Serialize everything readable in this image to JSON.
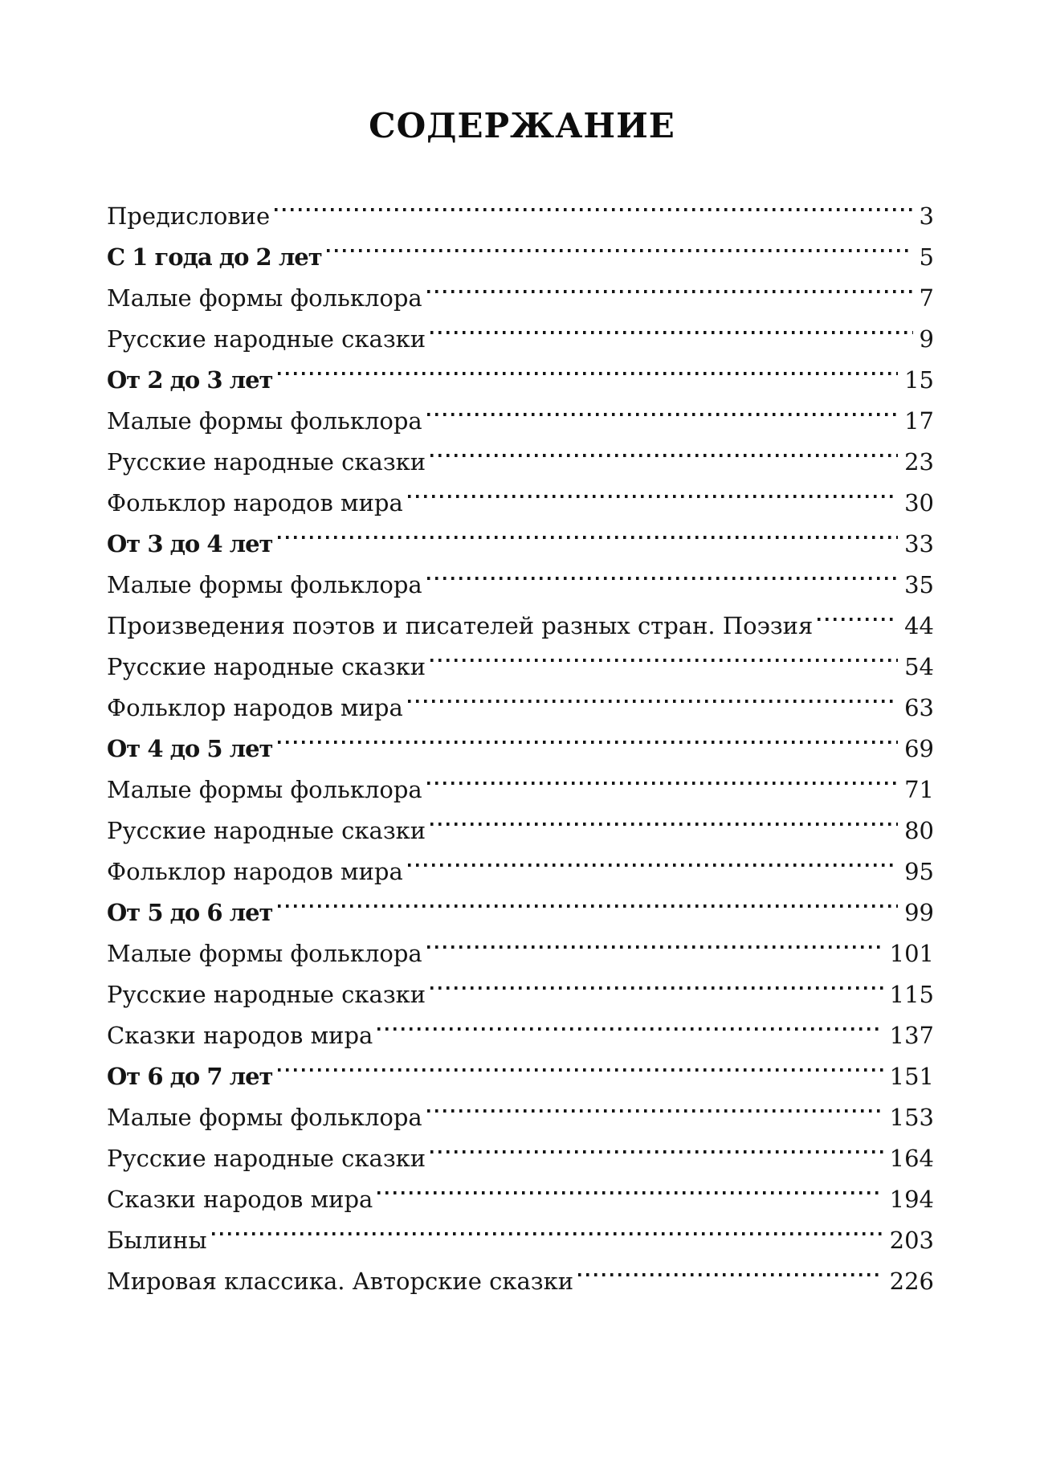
{
  "page": {
    "title": "СОДЕРЖАНИЕ"
  },
  "toc": {
    "entries": [
      {
        "label": "Предисловие",
        "page": "3",
        "bold": false
      },
      {
        "label": "С 1 года до 2 лет",
        "page": "5",
        "bold": true
      },
      {
        "label": "Малые формы фольклора",
        "page": "7",
        "bold": false
      },
      {
        "label": "Русские народные сказки",
        "page": "9",
        "bold": false
      },
      {
        "label": "От 2 до 3 лет",
        "page": "15",
        "bold": true
      },
      {
        "label": "Малые формы фольклора",
        "page": "17",
        "bold": false
      },
      {
        "label": "Русские народные сказки",
        "page": "23",
        "bold": false
      },
      {
        "label": "Фольклор народов мира",
        "page": "30",
        "bold": false
      },
      {
        "label": "От 3 до 4 лет",
        "page": "33",
        "bold": true
      },
      {
        "label": "Малые формы фольклора",
        "page": "35",
        "bold": false
      },
      {
        "label": "Произведения поэтов и писателей разных стран. Поэзия",
        "page": "44",
        "bold": false
      },
      {
        "label": "Русские народные сказки",
        "page": "54",
        "bold": false
      },
      {
        "label": "Фольклор народов мира",
        "page": "63",
        "bold": false
      },
      {
        "label": "От 4 до 5 лет",
        "page": "69",
        "bold": true
      },
      {
        "label": "Малые формы фольклора",
        "page": "71",
        "bold": false
      },
      {
        "label": "Русские народные сказки",
        "page": "80",
        "bold": false
      },
      {
        "label": "Фольклор народов мира",
        "page": "95",
        "bold": false
      },
      {
        "label": "От 5 до 6 лет",
        "page": "99",
        "bold": true
      },
      {
        "label": "Малые формы фольклора",
        "page": "101",
        "bold": false
      },
      {
        "label": "Русские народные сказки",
        "page": "115",
        "bold": false
      },
      {
        "label": "Сказки народов мира",
        "page": "137",
        "bold": false
      },
      {
        "label": "От 6 до 7 лет",
        "page": "151",
        "bold": true
      },
      {
        "label": "Малые формы фольклора",
        "page": "153",
        "bold": false
      },
      {
        "label": "Русские народные сказки",
        "page": "164",
        "bold": false
      },
      {
        "label": "Сказки народов мира",
        "page": "194",
        "bold": false
      },
      {
        "label": "Былины",
        "page": "203",
        "bold": false
      },
      {
        "label": "Мировая классика. Авторские сказки",
        "page": "226",
        "bold": false
      }
    ]
  }
}
